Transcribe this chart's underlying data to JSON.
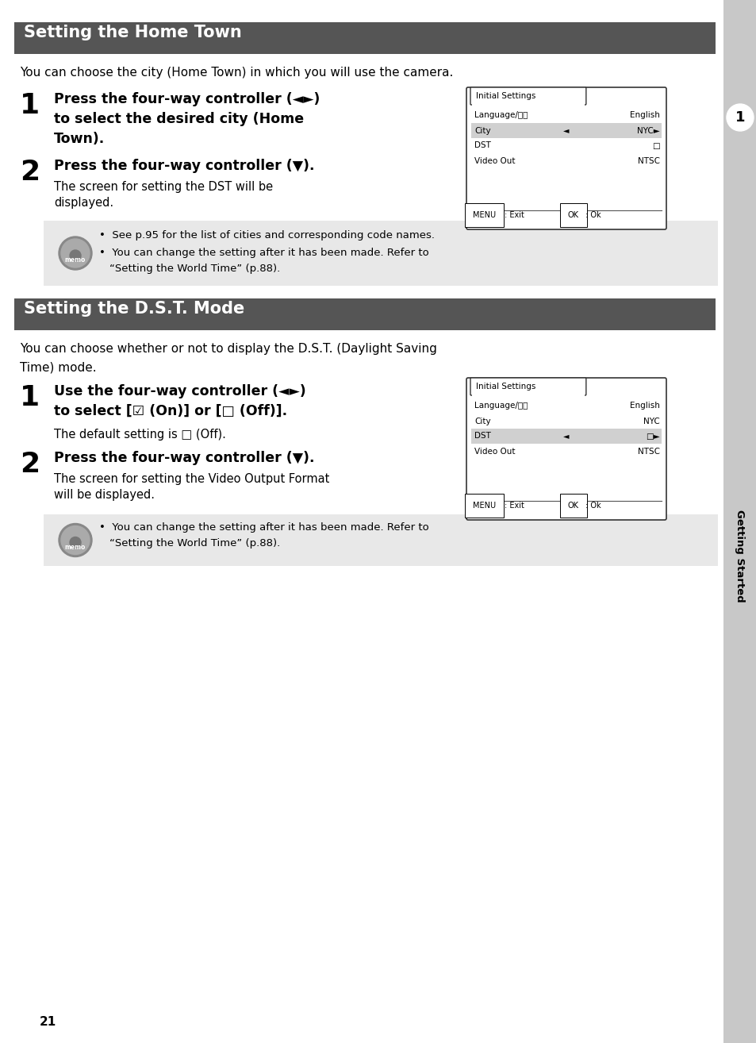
{
  "page_bg": "#ffffff",
  "sidebar_bg": "#c8c8c8",
  "header_bg": "#555555",
  "memo_bg": "#e8e8e8",
  "highlight_bg": "#d0d0d0",
  "header1_text": "Setting the Home Town",
  "header2_text": "Setting the D.S.T. Mode",
  "page_number": "21",
  "sidebar_label": "Getting Started",
  "section1_intro": "You can choose the city (Home Town) in which you will use the camera.",
  "section2_intro_1": "You can choose whether or not to display the D.S.T. (Daylight Saving",
  "section2_intro_2": "Time) mode.",
  "screen1_title": "Initial Settings",
  "screen1_rows": [
    "Language/言語",
    "City",
    "DST",
    "Video Out"
  ],
  "screen1_vals": [
    "English",
    "NYC►",
    "□",
    "NTSC"
  ],
  "screen1_highlight": 1,
  "screen2_title": "Initial Settings",
  "screen2_rows": [
    "Language/言語",
    "City",
    "DST",
    "Video Out"
  ],
  "screen2_vals": [
    "English",
    "NYC",
    "□►",
    "NTSC"
  ],
  "screen2_highlight": 2
}
